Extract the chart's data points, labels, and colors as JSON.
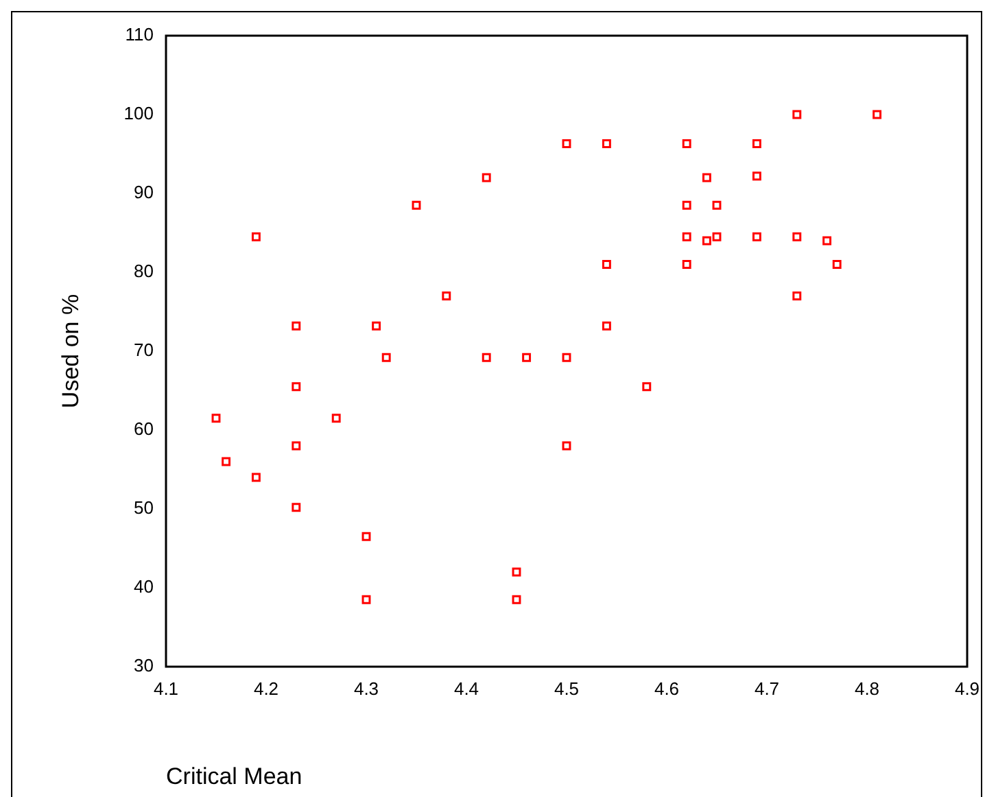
{
  "chart_data": {
    "type": "scatter",
    "xlabel": "Critical Mean",
    "ylabel": "Used on %",
    "x": [
      4.15,
      4.16,
      4.19,
      4.19,
      4.23,
      4.23,
      4.23,
      4.23,
      4.27,
      4.3,
      4.3,
      4.31,
      4.32,
      4.35,
      4.38,
      4.42,
      4.42,
      4.45,
      4.45,
      4.46,
      4.5,
      4.5,
      4.5,
      4.54,
      4.54,
      4.54,
      4.58,
      4.62,
      4.62,
      4.62,
      4.62,
      4.64,
      4.64,
      4.65,
      4.65,
      4.69,
      4.69,
      4.69,
      4.73,
      4.73,
      4.73,
      4.76,
      4.77,
      4.81
    ],
    "series": [
      {
        "color": "#ff0000",
        "values": [
          61.5,
          56,
          84.5,
          54,
          73.2,
          65.5,
          58,
          50.2,
          61.5,
          46.5,
          38.5,
          73.2,
          69.2,
          88.5,
          77,
          92,
          69.2,
          42,
          38.5,
          69.2,
          96.3,
          69.2,
          58,
          96.3,
          81,
          73.2,
          65.5,
          96.3,
          88.5,
          84.5,
          81,
          92,
          84,
          88.5,
          84.5,
          96.3,
          92.2,
          84.5,
          100,
          84.5,
          77,
          84,
          81,
          100
        ]
      }
    ],
    "xlim": [
      4.1,
      4.9
    ],
    "xticks": [
      4.1,
      4.2,
      4.3,
      4.4,
      4.5,
      4.6,
      4.7,
      4.8,
      4.9
    ],
    "ylim": [
      30,
      110
    ],
    "yticks": [
      30,
      40,
      50,
      60,
      70,
      80,
      90,
      100,
      110
    ],
    "grid": false,
    "legend": false,
    "marker": "square"
  }
}
